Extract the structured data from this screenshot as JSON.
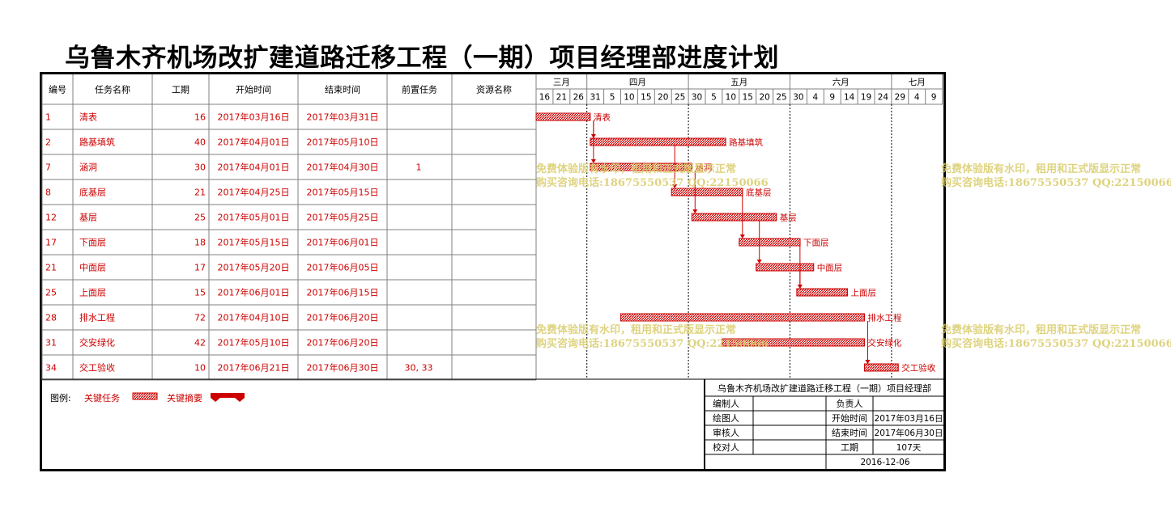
{
  "title": "乌鲁木齐机场改扩建道路迁移工程（一期）项目经理部进度计划",
  "table": {
    "headers": [
      "编号",
      "任务名称",
      "工期",
      "开始时间",
      "结束时间",
      "前置任务",
      "资源名称"
    ]
  },
  "timeline": {
    "months": [
      "三月",
      "四月",
      "五月",
      "六月",
      "七月"
    ],
    "days": [
      "16",
      "21",
      "26",
      "31",
      "5",
      "10",
      "15",
      "20",
      "25",
      "30",
      "5",
      "10",
      "15",
      "20",
      "25",
      "30",
      "4",
      "9",
      "14",
      "19",
      "24",
      "29",
      "4",
      "9"
    ]
  },
  "chart_data": {
    "type": "gantt",
    "title": "乌鲁木齐机场改扩建道路迁移工程（一期）项目经理部进度计划",
    "tasks": [
      {
        "id": "1",
        "name": "清表",
        "duration": "16",
        "start": "2017年03月16日",
        "end": "2017年03月31日",
        "pred": "",
        "resource": ""
      },
      {
        "id": "2",
        "name": "路基填筑",
        "duration": "40",
        "start": "2017年04月01日",
        "end": "2017年05月10日",
        "pred": "",
        "resource": ""
      },
      {
        "id": "7",
        "name": "涵洞",
        "duration": "30",
        "start": "2017年04月01日",
        "end": "2017年04月30日",
        "pred": "1",
        "resource": ""
      },
      {
        "id": "8",
        "name": "底基层",
        "duration": "21",
        "start": "2017年04月25日",
        "end": "2017年05月15日",
        "pred": "",
        "resource": ""
      },
      {
        "id": "12",
        "name": "基层",
        "duration": "25",
        "start": "2017年05月01日",
        "end": "2017年05月25日",
        "pred": "",
        "resource": ""
      },
      {
        "id": "17",
        "name": "下面层",
        "duration": "18",
        "start": "2017年05月15日",
        "end": "2017年06月01日",
        "pred": "",
        "resource": ""
      },
      {
        "id": "21",
        "name": "中面层",
        "duration": "17",
        "start": "2017年05月20日",
        "end": "2017年06月05日",
        "pred": "",
        "resource": ""
      },
      {
        "id": "25",
        "name": "上面层",
        "duration": "15",
        "start": "2017年06月01日",
        "end": "2017年06月15日",
        "pred": "",
        "resource": ""
      },
      {
        "id": "28",
        "name": "排水工程",
        "duration": "72",
        "start": "2017年04月10日",
        "end": "2017年06月20日",
        "pred": "",
        "resource": ""
      },
      {
        "id": "31",
        "name": "交安绿化",
        "duration": "42",
        "start": "2017年05月10日",
        "end": "2017年06月20日",
        "pred": "",
        "resource": ""
      },
      {
        "id": "34",
        "name": "交工验收",
        "duration": "10",
        "start": "2017年06月21日",
        "end": "2017年06月30日",
        "pred": "30, 33",
        "resource": ""
      }
    ],
    "bar_days": [
      [
        0,
        15
      ],
      [
        16,
        55
      ],
      [
        16,
        45
      ],
      [
        40,
        60
      ],
      [
        46,
        70
      ],
      [
        60,
        77
      ],
      [
        65,
        81
      ],
      [
        77,
        91
      ],
      [
        25,
        96
      ],
      [
        55,
        96
      ],
      [
        97,
        106
      ]
    ],
    "links": [
      [
        0,
        1
      ],
      [
        0,
        2
      ],
      [
        1,
        3
      ],
      [
        2,
        4
      ],
      [
        3,
        5
      ],
      [
        4,
        6
      ],
      [
        5,
        7
      ],
      [
        6,
        7
      ],
      [
        8,
        10
      ],
      [
        9,
        10
      ]
    ],
    "axis_start": "2017年03月16日"
  },
  "legend": {
    "label": "图例:",
    "critical_task": "关键任务",
    "critical_summary": "关键摘要"
  },
  "info_block": {
    "title": "乌鲁木齐机场改扩建道路迁移工程（一期）项目经理部",
    "rows": [
      {
        "k1": "编制人",
        "v1": "",
        "k2": "负责人",
        "v2": ""
      },
      {
        "k1": "绘图人",
        "v1": "",
        "k2": "开始时间",
        "v2": "2017年03月16日"
      },
      {
        "k1": "审核人",
        "v1": "",
        "k2": "结束时间",
        "v2": "2017年06月30日"
      },
      {
        "k1": "校对人",
        "v1": "",
        "k2": "工期",
        "v2": "107天"
      }
    ],
    "date": "2016-12-06"
  },
  "watermark": {
    "line1": "免费体验版有水印，租用和正式版显示正常",
    "line2": "购买咨询电话:18675550537 QQ:22150066"
  },
  "colors": {
    "task_red": "#cc0000",
    "grid": "#808080",
    "border": "#000000",
    "watermark": "#d9cc6a"
  }
}
